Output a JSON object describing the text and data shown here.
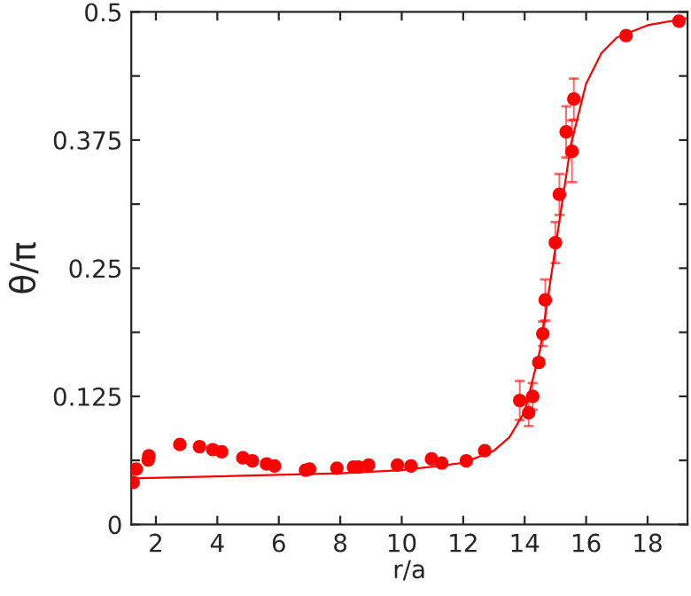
{
  "chart_data": {
    "type": "scatter",
    "xlabel": "r/a",
    "ylabel": "θ/π",
    "xlim": [
      1.2,
      19.3
    ],
    "ylim": [
      0,
      0.5
    ],
    "xticks": [
      2,
      4,
      6,
      8,
      10,
      12,
      14,
      16,
      18
    ],
    "yticks": [
      0,
      {
        "value": 0.0625,
        "label": null
      },
      0.125,
      {
        "value": 0.1875,
        "label": null
      },
      0.25,
      {
        "value": 0.3125,
        "label": null
      },
      0.375,
      {
        "value": 0.4375,
        "label": null
      },
      0.5
    ],
    "grid": false,
    "marker": "circle",
    "series": [
      {
        "color": "#ff0000",
        "x": [
          1.26,
          1.36,
          1.75,
          1.77,
          2.78,
          3.42,
          3.85,
          4.14,
          4.83,
          5.14,
          5.6,
          5.86,
          6.87,
          7.0,
          7.89,
          8.43,
          8.59,
          8.92,
          9.86,
          10.3,
          10.97,
          11.3,
          12.1,
          12.7,
          13.84,
          14.13,
          14.26,
          14.46,
          14.59,
          14.67,
          15.0,
          15.13,
          15.35,
          15.54,
          15.6,
          17.3,
          19.02
        ],
        "values": [
          0.041,
          0.054,
          0.063,
          0.067,
          0.078,
          0.076,
          0.073,
          0.071,
          0.065,
          0.062,
          0.059,
          0.057,
          0.053,
          0.054,
          0.055,
          0.056,
          0.056,
          0.058,
          0.058,
          0.057,
          0.064,
          0.06,
          0.062,
          0.072,
          0.121,
          0.109,
          0.125,
          0.158,
          0.186,
          0.219,
          0.275,
          0.322,
          0.383,
          0.364,
          0.415,
          0.477,
          0.491
        ],
        "errors": [
          null,
          null,
          null,
          null,
          null,
          null,
          null,
          null,
          null,
          null,
          null,
          null,
          null,
          null,
          null,
          null,
          null,
          null,
          null,
          null,
          null,
          null,
          null,
          null,
          0.019,
          0.013,
          0.013,
          null,
          0.012,
          0.02,
          0.02,
          0.02,
          0.025,
          0.03,
          0.02,
          null,
          null
        ]
      },
      {
        "type": "line",
        "color": "#ff0000",
        "marker": "none",
        "x": [
          1.2,
          4,
          8,
          10,
          12,
          13,
          13.5,
          14,
          14.5,
          15,
          15.5,
          16,
          16.5,
          17,
          18,
          19.3
        ],
        "values": [
          0.045,
          0.047,
          0.05,
          0.053,
          0.06,
          0.072,
          0.085,
          0.11,
          0.17,
          0.27,
          0.37,
          0.43,
          0.46,
          0.475,
          0.487,
          0.494
        ]
      }
    ]
  }
}
